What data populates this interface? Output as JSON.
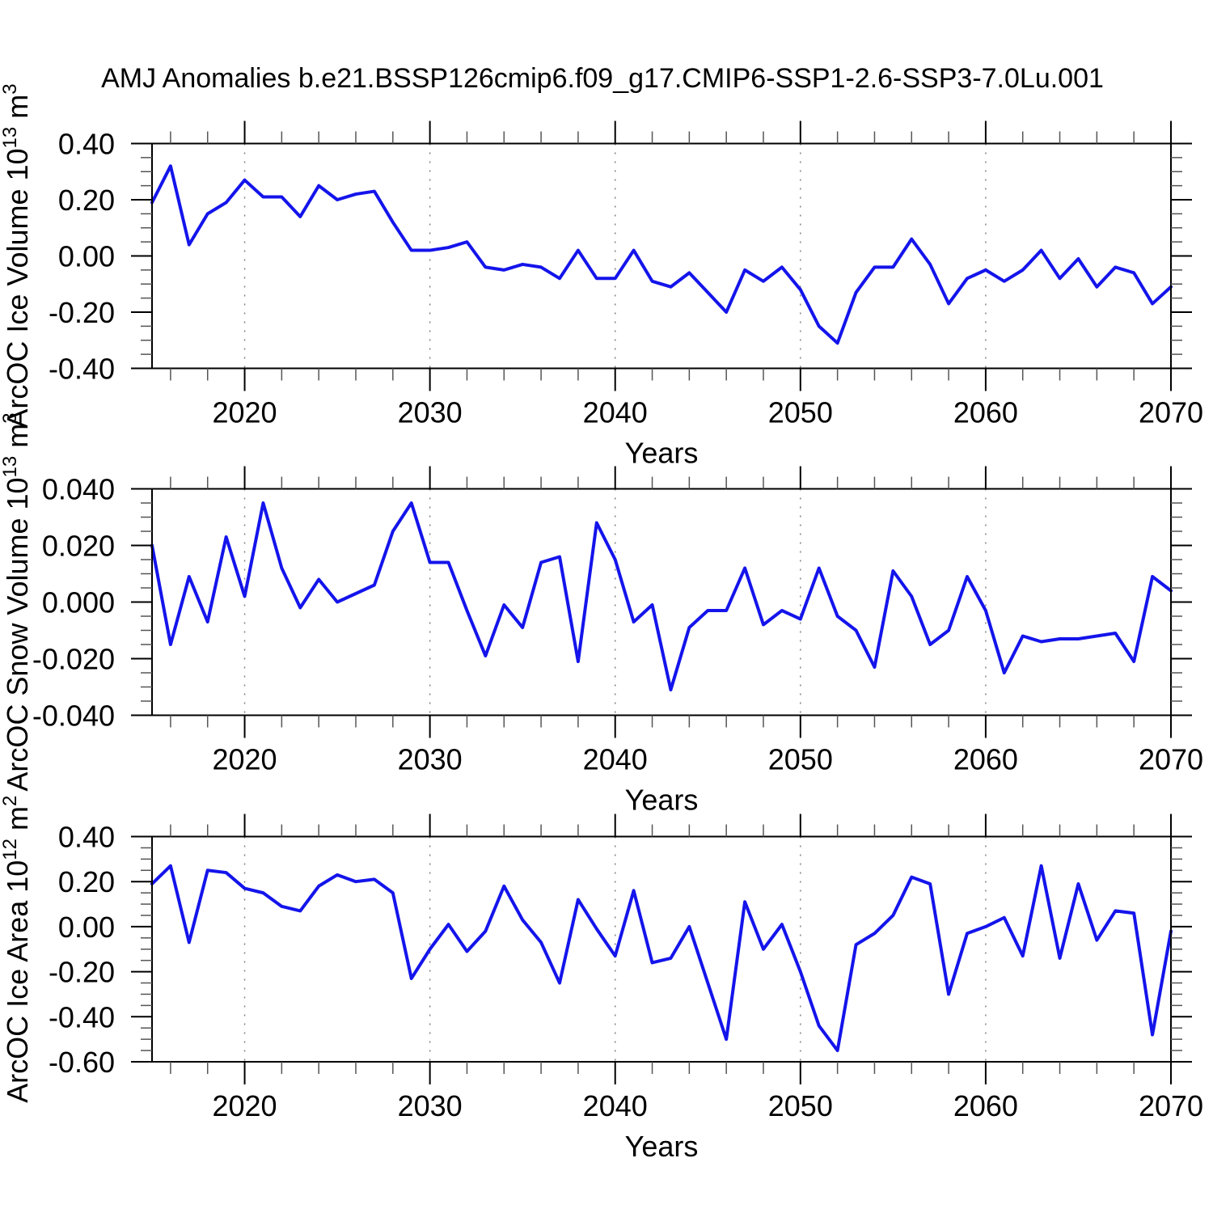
{
  "title": "AMJ Anomalies b.e21.BSSP126cmip6.f09_g17.CMIP6-SSP1-2.6-SSP3-7.0Lu.001",
  "line_color": "#1414eb",
  "grid_color": "#7a7a7a",
  "axis_color": "#000000",
  "minor_tick_color": "#555555",
  "years": [
    2015,
    2016,
    2017,
    2018,
    2019,
    2020,
    2021,
    2022,
    2023,
    2024,
    2025,
    2026,
    2027,
    2028,
    2029,
    2030,
    2031,
    2032,
    2033,
    2034,
    2035,
    2036,
    2037,
    2038,
    2039,
    2040,
    2041,
    2042,
    2043,
    2044,
    2045,
    2046,
    2047,
    2048,
    2049,
    2050,
    2051,
    2052,
    2053,
    2054,
    2055,
    2056,
    2057,
    2058,
    2059,
    2060,
    2061,
    2062,
    2063,
    2064,
    2065,
    2066,
    2067,
    2068,
    2069,
    2070
  ],
  "chart_data": [
    {
      "type": "line",
      "ylabel_parts": [
        "ArcOC Ice Volume 10",
        {
          "sup": "13"
        },
        " m",
        {
          "sup": "3"
        }
      ],
      "xlabel": "Years",
      "x_start": 2015,
      "x_end": 2070,
      "x_major_ticks": [
        {
          "v": 2020,
          "label": "2020"
        },
        {
          "v": 2030,
          "label": "2030"
        },
        {
          "v": 2040,
          "label": "2040"
        },
        {
          "v": 2050,
          "label": "2050"
        },
        {
          "v": 2060,
          "label": "2060"
        },
        {
          "v": 2070,
          "label": "2070"
        }
      ],
      "x_minor_step": 2,
      "gridline_years": [
        2020,
        2030,
        2040,
        2050,
        2060
      ],
      "ylim": [
        -0.4,
        0.4
      ],
      "y_ticks": [
        {
          "v": 0.4,
          "label": "0.40"
        },
        {
          "v": 0.2,
          "label": "0.20"
        },
        {
          "v": 0.0,
          "label": "0.00"
        },
        {
          "v": -0.2,
          "label": "-0.20"
        },
        {
          "v": -0.4,
          "label": "-0.40"
        }
      ],
      "y_minor_step": 0.05,
      "grid": "vertical-dashed",
      "legend": "none",
      "series": [
        {
          "name": "AMJ Ice Volume anomaly",
          "values": [
            0.19,
            0.32,
            0.04,
            0.15,
            0.19,
            0.27,
            0.21,
            0.21,
            0.14,
            0.25,
            0.2,
            0.22,
            0.23,
            0.12,
            0.02,
            0.02,
            0.03,
            0.05,
            -0.04,
            -0.05,
            -0.03,
            -0.04,
            -0.08,
            0.02,
            -0.08,
            -0.08,
            0.02,
            -0.09,
            -0.11,
            -0.06,
            -0.13,
            -0.2,
            -0.05,
            -0.09,
            -0.04,
            -0.12,
            -0.25,
            -0.31,
            -0.13,
            -0.04,
            -0.04,
            0.06,
            -0.03,
            -0.17,
            -0.08,
            -0.05,
            -0.09,
            -0.05,
            0.02,
            -0.08,
            -0.01,
            -0.11,
            -0.04,
            -0.06,
            -0.17,
            -0.11
          ]
        }
      ]
    },
    {
      "type": "line",
      "ylabel_parts": [
        "ArcOC Snow Volume 10",
        {
          "sup": "13"
        },
        " m",
        {
          "sup": "3"
        }
      ],
      "xlabel": "Years",
      "x_start": 2015,
      "x_end": 2070,
      "x_major_ticks": [
        {
          "v": 2020,
          "label": "2020"
        },
        {
          "v": 2030,
          "label": "2030"
        },
        {
          "v": 2040,
          "label": "2040"
        },
        {
          "v": 2050,
          "label": "2050"
        },
        {
          "v": 2060,
          "label": "2060"
        },
        {
          "v": 2070,
          "label": "2070"
        }
      ],
      "x_minor_step": 2,
      "gridline_years": [
        2020,
        2030,
        2040,
        2050,
        2060
      ],
      "ylim": [
        -0.04,
        0.04
      ],
      "y_ticks": [
        {
          "v": 0.04,
          "label": "0.040"
        },
        {
          "v": 0.02,
          "label": "0.020"
        },
        {
          "v": 0.0,
          "label": "0.000"
        },
        {
          "v": -0.02,
          "label": "-0.020"
        },
        {
          "v": -0.04,
          "label": "-0.040"
        }
      ],
      "y_minor_step": 0.005,
      "grid": "vertical-dashed",
      "legend": "none",
      "series": [
        {
          "name": "AMJ Snow Volume anomaly",
          "values": [
            0.02,
            -0.015,
            0.009,
            -0.007,
            0.023,
            0.002,
            0.035,
            0.012,
            -0.002,
            0.008,
            0.0,
            0.003,
            0.006,
            0.025,
            0.035,
            0.014,
            0.014,
            -0.003,
            -0.019,
            -0.001,
            -0.009,
            0.014,
            0.016,
            -0.021,
            0.028,
            0.015,
            -0.007,
            -0.001,
            -0.031,
            -0.009,
            -0.003,
            -0.003,
            0.012,
            -0.008,
            -0.003,
            -0.006,
            0.012,
            -0.005,
            -0.01,
            -0.023,
            0.011,
            0.002,
            -0.015,
            -0.01,
            0.009,
            -0.003,
            -0.025,
            -0.012,
            -0.014,
            -0.013,
            -0.013,
            -0.012,
            -0.011,
            -0.021,
            0.009,
            0.004
          ]
        }
      ]
    },
    {
      "type": "line",
      "ylabel_parts": [
        "ArcOC Ice Area 10",
        {
          "sup": "12"
        },
        " m",
        {
          "sup": "2"
        }
      ],
      "xlabel": "Years",
      "x_start": 2015,
      "x_end": 2070,
      "x_major_ticks": [
        {
          "v": 2020,
          "label": "2020"
        },
        {
          "v": 2030,
          "label": "2030"
        },
        {
          "v": 2040,
          "label": "2040"
        },
        {
          "v": 2050,
          "label": "2050"
        },
        {
          "v": 2060,
          "label": "2060"
        },
        {
          "v": 2070,
          "label": "2070"
        }
      ],
      "x_minor_step": 2,
      "gridline_years": [
        2020,
        2030,
        2040,
        2050,
        2060
      ],
      "ylim": [
        -0.6,
        0.4
      ],
      "y_ticks": [
        {
          "v": 0.4,
          "label": "0.40"
        },
        {
          "v": 0.2,
          "label": "0.20"
        },
        {
          "v": 0.0,
          "label": "0.00"
        },
        {
          "v": -0.2,
          "label": "-0.20"
        },
        {
          "v": -0.4,
          "label": "-0.40"
        },
        {
          "v": -0.6,
          "label": "-0.60"
        }
      ],
      "y_minor_step": 0.05,
      "grid": "vertical-dashed",
      "legend": "none",
      "series": [
        {
          "name": "AMJ Ice Area anomaly",
          "values": [
            0.19,
            0.27,
            -0.07,
            0.25,
            0.24,
            0.17,
            0.15,
            0.09,
            0.07,
            0.18,
            0.23,
            0.2,
            0.21,
            0.15,
            -0.23,
            -0.1,
            0.01,
            -0.11,
            -0.02,
            0.18,
            0.03,
            -0.07,
            -0.25,
            0.12,
            -0.01,
            -0.13,
            0.16,
            -0.16,
            -0.14,
            0.0,
            -0.25,
            -0.5,
            0.11,
            -0.1,
            0.01,
            -0.2,
            -0.44,
            -0.55,
            -0.08,
            -0.03,
            0.05,
            0.22,
            0.19,
            -0.3,
            -0.03,
            0.0,
            0.04,
            -0.13,
            0.27,
            -0.14,
            0.19,
            -0.06,
            0.07,
            0.06,
            -0.48,
            -0.02
          ]
        }
      ]
    }
  ]
}
